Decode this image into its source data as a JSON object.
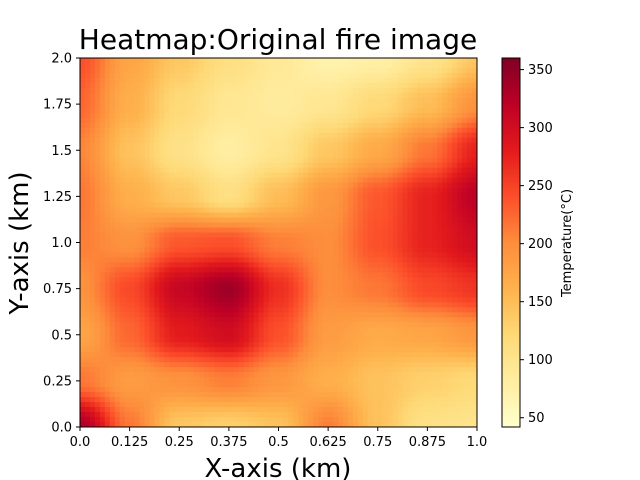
{
  "chart_data": {
    "type": "heatmap",
    "title": "Heatmap:Original fire image",
    "xlabel": "X-axis (km)",
    "ylabel": "Y-axis (km)",
    "xlim": [
      0,
      1
    ],
    "ylim": [
      0,
      2
    ],
    "x_ticks": [
      "0.0",
      "0.125",
      "0.25",
      "0.375",
      "0.5",
      "0.625",
      "0.75",
      "0.875",
      "1.0"
    ],
    "y_ticks": [
      "0.0",
      "0.25",
      "0.5",
      "0.75",
      "1.0",
      "1.25",
      "1.5",
      "1.75",
      "2.0"
    ],
    "colorbar": {
      "label": "Temperature(°C)",
      "colormap": "YlOrRd",
      "range": [
        42,
        360
      ],
      "ticks": [
        "50",
        "100",
        "150",
        "200",
        "250",
        "300",
        "350"
      ]
    },
    "grid_x": [
      0,
      0.125,
      0.25,
      0.375,
      0.5,
      0.625,
      0.75,
      0.875,
      1.0
    ],
    "grid_y": [
      2.0,
      1.75,
      1.5,
      1.25,
      1.0,
      0.75,
      0.5,
      0.25,
      0.0
    ],
    "values": [
      [
        240,
        175,
        140,
        110,
        90,
        70,
        75,
        100,
        140
      ],
      [
        225,
        165,
        120,
        95,
        85,
        95,
        120,
        150,
        195
      ],
      [
        205,
        145,
        105,
        80,
        100,
        140,
        170,
        215,
        275
      ],
      [
        215,
        165,
        140,
        110,
        150,
        190,
        235,
        275,
        320
      ],
      [
        210,
        195,
        235,
        240,
        210,
        200,
        240,
        275,
        300
      ],
      [
        195,
        245,
        310,
        340,
        265,
        200,
        215,
        245,
        260
      ],
      [
        175,
        225,
        280,
        300,
        240,
        185,
        170,
        175,
        190
      ],
      [
        215,
        185,
        195,
        210,
        190,
        165,
        145,
        130,
        120
      ],
      [
        330,
        215,
        140,
        130,
        145,
        210,
        145,
        105,
        100
      ]
    ]
  }
}
